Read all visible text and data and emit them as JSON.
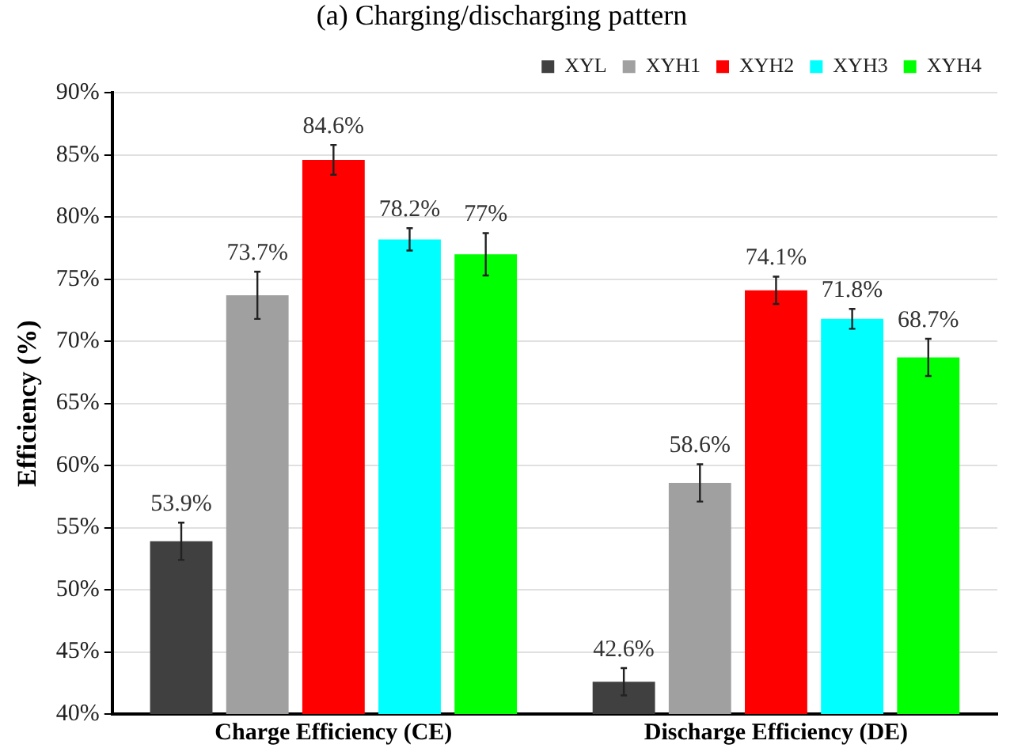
{
  "chart_data": {
    "type": "bar",
    "title": "(a) Charging/discharging pattern",
    "ylabel": "Efficiency (%)",
    "categories": [
      "Charge Efficiency (CE)",
      "Discharge Efficiency (DE)"
    ],
    "series": [
      {
        "name": "XYL",
        "color": "#404040",
        "values": [
          53.9,
          42.6
        ],
        "errors": [
          1.5,
          1.1
        ],
        "value_labels": [
          "53.9%",
          "42.6%"
        ]
      },
      {
        "name": "XYH1",
        "color": "#a0a0a0",
        "values": [
          73.7,
          58.6
        ],
        "errors": [
          1.9,
          1.5
        ],
        "value_labels": [
          "73.7%",
          "58.6%"
        ]
      },
      {
        "name": "XYH2",
        "color": "#ff0000",
        "values": [
          84.6,
          74.1
        ],
        "errors": [
          1.2,
          1.1
        ],
        "value_labels": [
          "84.6%",
          "74.1%"
        ]
      },
      {
        "name": "XYH3",
        "color": "#00ffff",
        "values": [
          78.2,
          71.8
        ],
        "errors": [
          0.9,
          0.8
        ],
        "value_labels": [
          "78.2%",
          "71.8%"
        ]
      },
      {
        "name": "XYH4",
        "color": "#00ff00",
        "values": [
          77,
          68.7
        ],
        "errors": [
          1.7,
          1.5
        ],
        "value_labels": [
          "77%",
          "68.7%"
        ]
      }
    ],
    "ylim": [
      40,
      90
    ],
    "yticks": [
      {
        "value": 40,
        "label": "40%"
      },
      {
        "value": 45,
        "label": "45%"
      },
      {
        "value": 50,
        "label": "50%"
      },
      {
        "value": 55,
        "label": "55%"
      },
      {
        "value": 60,
        "label": "60%"
      },
      {
        "value": 65,
        "label": "65%"
      },
      {
        "value": 70,
        "label": "70%"
      },
      {
        "value": 75,
        "label": "75%"
      },
      {
        "value": 80,
        "label": "80%"
      },
      {
        "value": 85,
        "label": "85%"
      },
      {
        "value": 90,
        "label": "90%"
      }
    ],
    "grid": "y",
    "legend": "top right"
  }
}
